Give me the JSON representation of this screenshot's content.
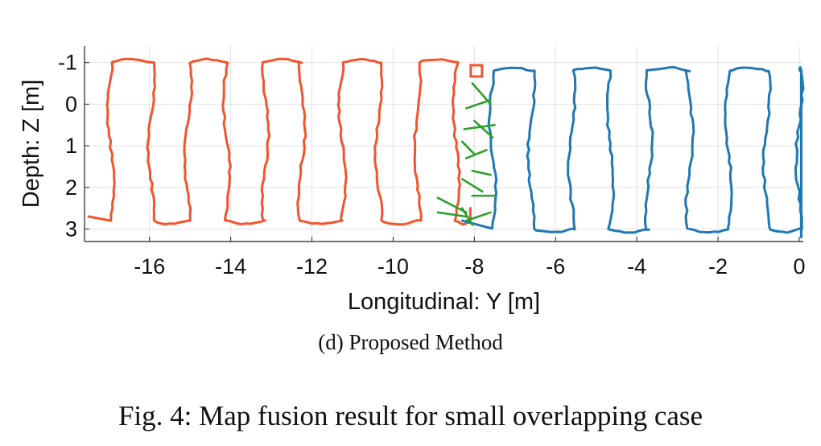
{
  "chart_data": {
    "type": "line",
    "title": "",
    "xlabel": "Longitudinal: Y [m]",
    "ylabel": "Depth: Z [m]",
    "xlim": [
      -17.6,
      0.1
    ],
    "ylim": [
      -1.4,
      3.3
    ],
    "y_reversed": true,
    "grid": true,
    "x_ticks": [
      -16,
      -14,
      -12,
      -10,
      -8,
      -6,
      -4,
      -2,
      0
    ],
    "x_tick_labels": [
      "-16",
      "-14",
      "-12",
      "-10",
      "-8",
      "-6",
      "-4",
      "-2",
      "0"
    ],
    "y_ticks": [
      -1,
      0,
      1,
      2,
      3
    ],
    "y_tick_labels": [
      "-1",
      "0",
      "1",
      "2",
      "3"
    ],
    "series": [
      {
        "color": "#f2542d",
        "kind": "scan-trajectory",
        "columns_y": [
          -16.95,
          -15.95,
          -15.05,
          -14.1,
          -13.15,
          -12.25,
          -11.25,
          -10.35,
          -9.4,
          -8.45
        ],
        "top_z": -1.0,
        "bottom_z": 2.8,
        "start": [
          -17.5,
          2.7
        ],
        "end": [
          -8.1,
          2.5
        ]
      },
      {
        "color": "#1f77b4",
        "kind": "scan-trajectory",
        "columns_y": [
          -7.55,
          -6.6,
          -5.6,
          -4.65,
          -3.7,
          -2.7,
          -1.75,
          -0.8,
          0.0
        ],
        "top_z": -0.8,
        "bottom_z": 3.0,
        "start": [
          -8.3,
          2.8
        ],
        "end": [
          0.05,
          3.2
        ]
      },
      {
        "color": "#2ca02c",
        "kind": "loop-closure-links",
        "segments": [
          [
            [
              -8.05,
              -0.5
            ],
            [
              -7.6,
              0.0
            ]
          ],
          [
            [
              -8.2,
              0.1
            ],
            [
              -7.6,
              -0.1
            ]
          ],
          [
            [
              -8.0,
              0.4
            ],
            [
              -7.55,
              0.8
            ]
          ],
          [
            [
              -8.25,
              0.6
            ],
            [
              -7.5,
              0.5
            ]
          ],
          [
            [
              -8.3,
              0.9
            ],
            [
              -8.0,
              1.2
            ]
          ],
          [
            [
              -8.2,
              1.3
            ],
            [
              -7.7,
              1.1
            ]
          ],
          [
            [
              -8.05,
              1.6
            ],
            [
              -7.6,
              1.7
            ]
          ],
          [
            [
              -8.3,
              1.8
            ],
            [
              -7.8,
              2.1
            ]
          ],
          [
            [
              -8.05,
              2.2
            ],
            [
              -7.5,
              2.2
            ]
          ],
          [
            [
              -8.9,
              2.25
            ],
            [
              -8.2,
              2.6
            ]
          ],
          [
            [
              -8.9,
              2.6
            ],
            [
              -8.2,
              2.7
            ]
          ],
          [
            [
              -8.2,
              2.8
            ],
            [
              -7.6,
              2.6
            ]
          ],
          [
            [
              -8.05,
              2.9
            ],
            [
              -8.3,
              2.5
            ]
          ]
        ]
      },
      {
        "color": "#f2542d",
        "kind": "marker-square",
        "points": [
          [
            -7.95,
            -0.8
          ]
        ]
      }
    ]
  },
  "subcaption": "(d) Proposed Method",
  "caption": "Fig. 4: Map fusion result for small overlapping case"
}
